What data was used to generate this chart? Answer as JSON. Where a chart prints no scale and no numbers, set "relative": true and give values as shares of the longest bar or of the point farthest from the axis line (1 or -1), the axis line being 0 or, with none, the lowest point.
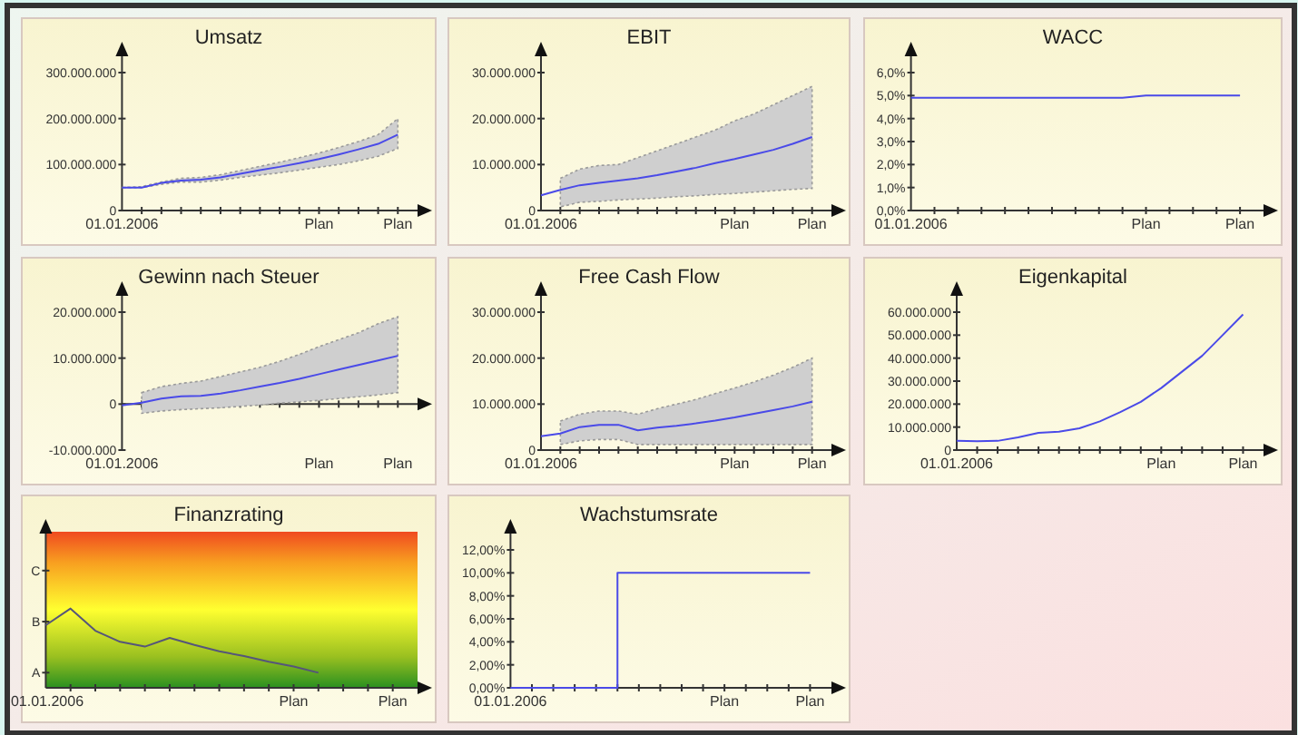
{
  "chart_data": [
    {
      "type": "line",
      "title": "Umsatz",
      "categories": [
        "01.01.2006",
        null,
        null,
        null,
        null,
        null,
        null,
        null,
        null,
        null,
        "Plan",
        null,
        null,
        null,
        "Plan"
      ],
      "ylim": [
        0,
        300000000
      ],
      "yticks": [
        {
          "value": 0,
          "label": "0"
        },
        {
          "value": 100000000,
          "label": "100.000.000"
        },
        {
          "value": 200000000,
          "label": "200.000.000"
        },
        {
          "value": 300000000,
          "label": "300.000.000"
        }
      ],
      "series": [
        {
          "color": "#4a4ae8",
          "values": [
            50000000,
            50000000,
            60000000,
            65000000,
            67000000,
            72000000,
            80000000,
            88000000,
            95000000,
            103000000,
            112000000,
            122000000,
            133000000,
            145000000,
            165000000
          ],
          "lower": [
            50000000,
            50000000,
            57000000,
            62000000,
            62000000,
            66000000,
            72000000,
            77000000,
            82000000,
            88000000,
            94000000,
            100000000,
            108000000,
            118000000,
            135000000
          ],
          "upper": [
            50000000,
            52000000,
            62000000,
            70000000,
            72000000,
            78000000,
            87000000,
            96000000,
            105000000,
            115000000,
            125000000,
            137000000,
            150000000,
            165000000,
            200000000
          ]
        }
      ]
    },
    {
      "type": "line",
      "title": "EBIT",
      "categories": [
        "01.01.2006",
        null,
        null,
        null,
        null,
        null,
        null,
        null,
        null,
        null,
        "Plan",
        null,
        null,
        null,
        "Plan"
      ],
      "ylim": [
        0,
        30000000
      ],
      "yticks": [
        {
          "value": 0,
          "label": "0"
        },
        {
          "value": 10000000,
          "label": "10.000.000"
        },
        {
          "value": 20000000,
          "label": "20.000.000"
        },
        {
          "value": 30000000,
          "label": "30.000.000"
        }
      ],
      "series": [
        {
          "color": "#4a4ae8",
          "values": [
            3300000,
            4500000,
            5500000,
            6000000,
            6500000,
            7000000,
            7700000,
            8500000,
            9300000,
            10300000,
            11200000,
            12200000,
            13200000,
            14500000,
            16000000
          ],
          "lower": [
            null,
            800000,
            1800000,
            2000000,
            2300000,
            2500000,
            2700000,
            3000000,
            3200000,
            3500000,
            3700000,
            4000000,
            4300000,
            4600000,
            4800000
          ],
          "upper": [
            null,
            7000000,
            9000000,
            9800000,
            10000000,
            11500000,
            13000000,
            14500000,
            16000000,
            17500000,
            19500000,
            21000000,
            23000000,
            25000000,
            27000000
          ]
        }
      ]
    },
    {
      "type": "line",
      "title": "WACC",
      "categories": [
        "01.01.2006",
        null,
        null,
        null,
        null,
        null,
        null,
        null,
        null,
        null,
        "Plan",
        null,
        null,
        null,
        "Plan"
      ],
      "ylim": [
        0,
        6
      ],
      "yticks": [
        {
          "value": 0,
          "label": "0,0%"
        },
        {
          "value": 1,
          "label": "1,0%"
        },
        {
          "value": 2,
          "label": "2,0%"
        },
        {
          "value": 3,
          "label": "3,0%"
        },
        {
          "value": 4,
          "label": "4,0%"
        },
        {
          "value": 5,
          "label": "5,0%"
        },
        {
          "value": 6,
          "label": "6,0%"
        }
      ],
      "series": [
        {
          "color": "#4a4ae8",
          "values": [
            4.9,
            4.9,
            4.9,
            4.9,
            4.9,
            4.9,
            4.9,
            4.9,
            4.9,
            4.9,
            5.0,
            5.0,
            5.0,
            5.0,
            5.0
          ]
        }
      ]
    },
    {
      "type": "line",
      "title": "Gewinn nach Steuer",
      "categories": [
        "01.01.2006",
        null,
        null,
        null,
        null,
        null,
        null,
        null,
        null,
        null,
        "Plan",
        null,
        null,
        null,
        "Plan"
      ],
      "ylim": [
        -10000000,
        20000000
      ],
      "yticks": [
        {
          "value": -10000000,
          "label": "-10.000.000"
        },
        {
          "value": 0,
          "label": "0"
        },
        {
          "value": 10000000,
          "label": "10.000.000"
        },
        {
          "value": 20000000,
          "label": "20.000.000"
        }
      ],
      "series": [
        {
          "color": "#4a4ae8",
          "values": [
            -300000,
            300000,
            1200000,
            1700000,
            1800000,
            2300000,
            3000000,
            3800000,
            4600000,
            5500000,
            6500000,
            7500000,
            8500000,
            9500000,
            10500000
          ],
          "lower": [
            null,
            -2000000,
            -1500000,
            -1200000,
            -1000000,
            -800000,
            -500000,
            -200000,
            200000,
            500000,
            800000,
            1200000,
            1600000,
            2000000,
            2500000
          ],
          "upper": [
            null,
            2500000,
            3800000,
            4500000,
            5000000,
            6000000,
            7000000,
            8000000,
            9300000,
            10800000,
            12500000,
            14000000,
            15500000,
            17500000,
            19000000
          ]
        }
      ]
    },
    {
      "type": "line",
      "title": "Free Cash Flow",
      "categories": [
        "01.01.2006",
        null,
        null,
        null,
        null,
        null,
        null,
        null,
        null,
        null,
        "Plan",
        null,
        null,
        null,
        "Plan"
      ],
      "ylim": [
        0,
        30000000
      ],
      "yticks": [
        {
          "value": 0,
          "label": "0"
        },
        {
          "value": 10000000,
          "label": "10.000.000"
        },
        {
          "value": 20000000,
          "label": "20.000.000"
        },
        {
          "value": 30000000,
          "label": "30.000.000"
        }
      ],
      "series": [
        {
          "color": "#4a4ae8",
          "values": [
            3000000,
            3600000,
            5000000,
            5500000,
            5500000,
            4300000,
            4900000,
            5300000,
            5800000,
            6400000,
            7100000,
            7900000,
            8700000,
            9500000,
            10500000
          ],
          "lower": [
            null,
            1200000,
            2000000,
            2300000,
            2300000,
            1200000,
            1200000,
            1200000,
            1200000,
            1200000,
            1200000,
            1200000,
            1200000,
            1200000,
            1200000
          ],
          "upper": [
            null,
            6300000,
            7800000,
            8500000,
            8500000,
            7800000,
            9000000,
            10000000,
            11000000,
            12300000,
            13500000,
            14800000,
            16300000,
            18000000,
            20000000
          ]
        }
      ]
    },
    {
      "type": "line",
      "title": "Eigenkapital",
      "categories": [
        "01.01.2006",
        null,
        null,
        null,
        null,
        null,
        null,
        null,
        null,
        null,
        "Plan",
        null,
        null,
        null,
        "Plan"
      ],
      "ylim": [
        0,
        60000000
      ],
      "yticks": [
        {
          "value": 0,
          "label": "0"
        },
        {
          "value": 10000000,
          "label": "10.000.000"
        },
        {
          "value": 20000000,
          "label": "20.000.000"
        },
        {
          "value": 30000000,
          "label": "30.000.000"
        },
        {
          "value": 40000000,
          "label": "40.000.000"
        },
        {
          "value": 50000000,
          "label": "50.000.000"
        },
        {
          "value": 60000000,
          "label": "60.000.000"
        }
      ],
      "series": [
        {
          "color": "#4a4ae8",
          "values": [
            4000000,
            3800000,
            4000000,
            5500000,
            7500000,
            8000000,
            9500000,
            12500000,
            16500000,
            21000000,
            27000000,
            34000000,
            41000000,
            50000000,
            59000000
          ]
        }
      ]
    },
    {
      "type": "line",
      "title": "Finanzrating",
      "relative": true,
      "categories": [
        "01.01.2006",
        null,
        null,
        null,
        null,
        null,
        null,
        null,
        null,
        null,
        "Plan",
        null,
        null,
        null,
        "Plan"
      ],
      "annotations": [
        "A",
        "B",
        "C"
      ],
      "series": [
        {
          "color": "#55557a",
          "values": [
            0.79,
            1,
            0.72,
            0.58,
            0.52,
            0.63,
            0.54,
            0.46,
            0.4,
            0.33,
            0.27,
            0.19,
            null,
            null,
            null
          ]
        }
      ]
    },
    {
      "type": "step",
      "title": "Wachstumsrate",
      "categories": [
        "01.01.2006",
        null,
        null,
        null,
        null,
        null,
        null,
        null,
        null,
        null,
        "Plan",
        null,
        null,
        null,
        "Plan"
      ],
      "ylim": [
        0,
        12
      ],
      "yticks": [
        {
          "value": 0,
          "label": "0,00%"
        },
        {
          "value": 2,
          "label": "2,00%"
        },
        {
          "value": 4,
          "label": "4,00%"
        },
        {
          "value": 6,
          "label": "6,00%"
        },
        {
          "value": 8,
          "label": "8,00%"
        },
        {
          "value": 10,
          "label": "10,00%"
        },
        {
          "value": 12,
          "label": "12,00%"
        }
      ],
      "series": [
        {
          "color": "#4a4ae8",
          "values": [
            0,
            0,
            0,
            0,
            0,
            10,
            10,
            10,
            10,
            10,
            10,
            10,
            10,
            10,
            10
          ]
        }
      ]
    }
  ]
}
